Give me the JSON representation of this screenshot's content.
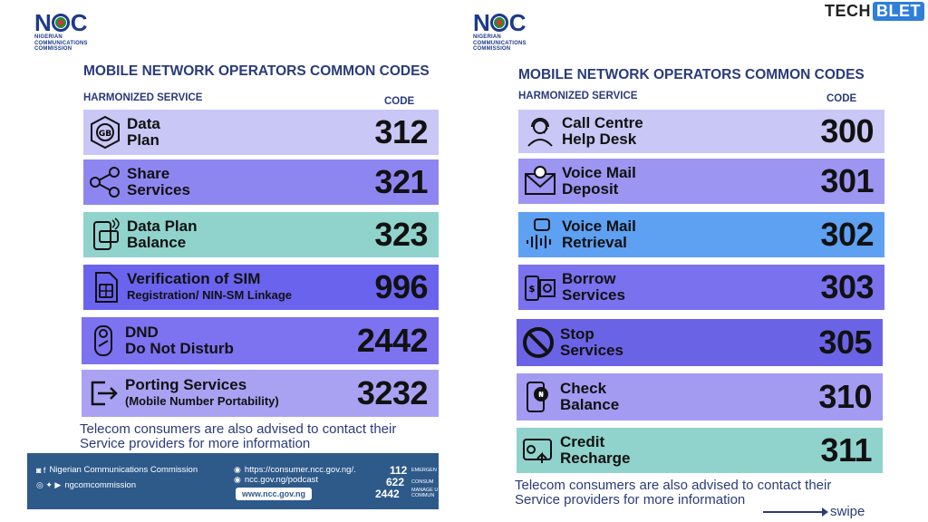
{
  "brand": {
    "part1": "TECH",
    "part2": "BLET"
  },
  "logo": {
    "mark_left": "N",
    "mark_right": "C",
    "line1": "NIGERIAN",
    "line2": "COMMUNICATIONS",
    "line3": "COMMISSION"
  },
  "heading": "MOBILE NETWORK OPERATORS COMMON CODES",
  "col_service": "HARMONIZED SERVICE",
  "col_code": "CODE",
  "note_line1": "Telecom consumers are also advised to contact their",
  "note_line2": "Service providers for more information",
  "left_rows": [
    {
      "line1": "Data",
      "line2": "Plan",
      "code": "312",
      "color": "#c9c7f5",
      "icon": "gb-data-icon"
    },
    {
      "line1": "Share",
      "line2": "Services",
      "code": "321",
      "color": "#8e86f0",
      "icon": "share-icon"
    },
    {
      "line1": "Data Plan",
      "line2": "Balance",
      "code": "323",
      "color": "#8fd3cc",
      "icon": "phone-balance-icon"
    },
    {
      "line1": "Verification of SIM",
      "line2": "Registration/ NIN-SM Linkage",
      "code": "996",
      "color": "#6a63ee",
      "icon": "sim-card-icon"
    },
    {
      "line1": "DND",
      "line2": "Do Not Disturb",
      "code": "2442",
      "color": "#7d72f0",
      "icon": "door-hanger-icon"
    },
    {
      "line1": "Porting Services",
      "line2": "(Mobile Number Portability)",
      "code": "3232",
      "color": "#a9a2f3",
      "icon": "exit-arrow-icon"
    }
  ],
  "right_rows": [
    {
      "line1": "Call Centre",
      "line2": "Help Desk",
      "code": "300",
      "color": "#c9c7f5",
      "icon": "headset-agent-icon"
    },
    {
      "line1": "Voice Mail",
      "line2": "Deposit",
      "code": "301",
      "color": "#9c95f1",
      "icon": "voicemail-envelope-icon"
    },
    {
      "line1": "Voice Mail",
      "line2": "Retrieval",
      "code": "302",
      "color": "#5ea0f2",
      "icon": "voice-wave-icon"
    },
    {
      "line1": "Borrow",
      "line2": "Services",
      "code": "303",
      "color": "#7a71ef",
      "icon": "borrow-cash-icon"
    },
    {
      "line1": "Stop",
      "line2": "Services",
      "code": "305",
      "color": "#6b63e6",
      "icon": "stop-sign-icon"
    },
    {
      "line1": "Check",
      "line2": "Balance",
      "code": "310",
      "color": "#a39bf2",
      "icon": "phone-coin-icon"
    },
    {
      "line1": "Credit",
      "line2": "Recharge",
      "code": "311",
      "color": "#8fd3cc",
      "icon": "recharge-card-icon"
    }
  ],
  "footer": {
    "org": "Nigerian Communications Commission",
    "handle": "ngcomcommission",
    "consumer_url": "https://consumer.ncc.gov.ng/.",
    "podcast_url": "ncc.gov.ng/podcast",
    "website": "www.ncc.gov.ng",
    "code1": "112",
    "label1": "EMERGEN",
    "code2": "622",
    "label2": "CONSUM",
    "code3": "2442",
    "label3a": "MANAGE U",
    "label3b": "COMMUN"
  },
  "swipe": "swipe"
}
